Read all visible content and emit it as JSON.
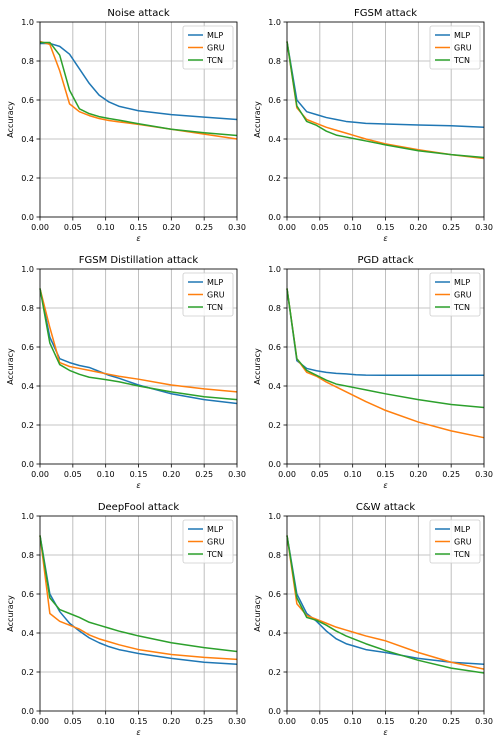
{
  "chart_data": [
    {
      "type": "line",
      "title": "Noise attack",
      "xlabel": "ε",
      "ylabel": "Accuracy",
      "xlim": [
        0.0,
        0.3
      ],
      "ylim": [
        0.0,
        1.0
      ],
      "xticks": [
        "0.00",
        "0.05",
        "0.10",
        "0.15",
        "0.20",
        "0.25",
        "0.30"
      ],
      "yticks": [
        "0.0",
        "0.2",
        "0.4",
        "0.6",
        "0.8",
        "1.0"
      ],
      "grid": true,
      "legend": "top-right",
      "x": [
        0.0,
        0.015,
        0.03,
        0.045,
        0.06,
        0.075,
        0.09,
        0.105,
        0.12,
        0.15,
        0.2,
        0.25,
        0.3
      ],
      "series": [
        {
          "name": "MLP",
          "color": "#1f77b4",
          "values": [
            0.89,
            0.89,
            0.875,
            0.835,
            0.76,
            0.685,
            0.625,
            0.59,
            0.568,
            0.545,
            0.525,
            0.512,
            0.5
          ]
        },
        {
          "name": "GRU",
          "color": "#ff7f0e",
          "values": [
            0.9,
            0.885,
            0.75,
            0.58,
            0.54,
            0.52,
            0.505,
            0.495,
            0.488,
            0.475,
            0.45,
            0.425,
            0.4
          ]
        },
        {
          "name": "TCN",
          "color": "#2ca02c",
          "values": [
            0.895,
            0.895,
            0.83,
            0.65,
            0.555,
            0.53,
            0.515,
            0.505,
            0.497,
            0.478,
            0.45,
            0.432,
            0.418
          ]
        }
      ]
    },
    {
      "type": "line",
      "title": "FGSM attack",
      "xlabel": "ε",
      "ylabel": "Accuracy",
      "xlim": [
        0.0,
        0.3
      ],
      "ylim": [
        0.0,
        1.0
      ],
      "xticks": [
        "0.00",
        "0.05",
        "0.10",
        "0.15",
        "0.20",
        "0.25",
        "0.30"
      ],
      "yticks": [
        "0.0",
        "0.2",
        "0.4",
        "0.6",
        "0.8",
        "1.0"
      ],
      "grid": true,
      "legend": "top-right",
      "x": [
        0.0,
        0.015,
        0.03,
        0.045,
        0.06,
        0.075,
        0.09,
        0.105,
        0.12,
        0.15,
        0.2,
        0.25,
        0.3
      ],
      "series": [
        {
          "name": "MLP",
          "color": "#1f77b4",
          "values": [
            0.9,
            0.6,
            0.54,
            0.525,
            0.51,
            0.5,
            0.49,
            0.485,
            0.48,
            0.477,
            0.472,
            0.468,
            0.46
          ]
        },
        {
          "name": "GRU",
          "color": "#ff7f0e",
          "values": [
            0.9,
            0.56,
            0.5,
            0.48,
            0.46,
            0.445,
            0.43,
            0.415,
            0.4,
            0.375,
            0.345,
            0.32,
            0.3
          ]
        },
        {
          "name": "TCN",
          "color": "#2ca02c",
          "values": [
            0.9,
            0.57,
            0.49,
            0.47,
            0.44,
            0.42,
            0.41,
            0.4,
            0.39,
            0.37,
            0.34,
            0.32,
            0.305
          ]
        }
      ]
    },
    {
      "type": "line",
      "title": "FGSM Distillation attack",
      "xlabel": "ε",
      "ylabel": "Accuracy",
      "xlim": [
        0.0,
        0.3
      ],
      "ylim": [
        0.0,
        1.0
      ],
      "xticks": [
        "0.00",
        "0.05",
        "0.10",
        "0.15",
        "0.20",
        "0.25",
        "0.30"
      ],
      "yticks": [
        "0.0",
        "0.2",
        "0.4",
        "0.6",
        "0.8",
        "1.0"
      ],
      "grid": true,
      "legend": "top-right",
      "x": [
        0.0,
        0.015,
        0.03,
        0.045,
        0.06,
        0.075,
        0.09,
        0.105,
        0.12,
        0.15,
        0.2,
        0.25,
        0.3
      ],
      "series": [
        {
          "name": "MLP",
          "color": "#1f77b4",
          "values": [
            0.9,
            0.65,
            0.54,
            0.52,
            0.505,
            0.495,
            0.475,
            0.455,
            0.44,
            0.405,
            0.36,
            0.33,
            0.31
          ]
        },
        {
          "name": "GRU",
          "color": "#ff7f0e",
          "values": [
            0.9,
            0.7,
            0.52,
            0.5,
            0.49,
            0.48,
            0.47,
            0.46,
            0.45,
            0.435,
            0.405,
            0.385,
            0.37
          ]
        },
        {
          "name": "TCN",
          "color": "#2ca02c",
          "values": [
            0.9,
            0.62,
            0.51,
            0.48,
            0.46,
            0.445,
            0.438,
            0.43,
            0.422,
            0.4,
            0.37,
            0.345,
            0.33
          ]
        }
      ]
    },
    {
      "type": "line",
      "title": "PGD attack",
      "xlabel": "ε",
      "ylabel": "Accuracy",
      "xlim": [
        0.0,
        0.3
      ],
      "ylim": [
        0.0,
        1.0
      ],
      "xticks": [
        "0.00",
        "0.05",
        "0.10",
        "0.15",
        "0.20",
        "0.25",
        "0.30"
      ],
      "yticks": [
        "0.0",
        "0.2",
        "0.4",
        "0.6",
        "0.8",
        "1.0"
      ],
      "grid": true,
      "legend": "top-right",
      "x": [
        0.0,
        0.015,
        0.03,
        0.045,
        0.06,
        0.075,
        0.09,
        0.105,
        0.12,
        0.15,
        0.2,
        0.25,
        0.3
      ],
      "series": [
        {
          "name": "MLP",
          "color": "#1f77b4",
          "values": [
            0.9,
            0.53,
            0.49,
            0.478,
            0.47,
            0.465,
            0.462,
            0.458,
            0.456,
            0.455,
            0.455,
            0.455,
            0.455
          ]
        },
        {
          "name": "GRU",
          "color": "#ff7f0e",
          "values": [
            0.9,
            0.54,
            0.47,
            0.45,
            0.42,
            0.395,
            0.37,
            0.345,
            0.32,
            0.275,
            0.215,
            0.17,
            0.135
          ]
        },
        {
          "name": "TCN",
          "color": "#2ca02c",
          "values": [
            0.9,
            0.54,
            0.48,
            0.455,
            0.43,
            0.41,
            0.4,
            0.39,
            0.38,
            0.36,
            0.33,
            0.305,
            0.29
          ]
        }
      ]
    },
    {
      "type": "line",
      "title": "DeepFool attack",
      "xlabel": "ε",
      "ylabel": "Accuracy",
      "xlim": [
        0.0,
        0.3
      ],
      "ylim": [
        0.0,
        1.0
      ],
      "xticks": [
        "0.00",
        "0.05",
        "0.10",
        "0.15",
        "0.20",
        "0.25",
        "0.30"
      ],
      "yticks": [
        "0.0",
        "0.2",
        "0.4",
        "0.6",
        "0.8",
        "1.0"
      ],
      "grid": true,
      "legend": "top-right",
      "x": [
        0.0,
        0.015,
        0.03,
        0.045,
        0.06,
        0.075,
        0.09,
        0.105,
        0.12,
        0.15,
        0.2,
        0.25,
        0.3
      ],
      "series": [
        {
          "name": "MLP",
          "color": "#1f77b4",
          "values": [
            0.9,
            0.6,
            0.51,
            0.45,
            0.41,
            0.375,
            0.35,
            0.33,
            0.315,
            0.295,
            0.27,
            0.25,
            0.24
          ]
        },
        {
          "name": "GRU",
          "color": "#ff7f0e",
          "values": [
            0.9,
            0.5,
            0.46,
            0.44,
            0.42,
            0.39,
            0.37,
            0.355,
            0.34,
            0.315,
            0.29,
            0.275,
            0.265
          ]
        },
        {
          "name": "TCN",
          "color": "#2ca02c",
          "values": [
            0.9,
            0.58,
            0.52,
            0.5,
            0.48,
            0.455,
            0.44,
            0.425,
            0.41,
            0.385,
            0.35,
            0.325,
            0.305
          ]
        }
      ]
    },
    {
      "type": "line",
      "title": "C&W attack",
      "xlabel": "ε",
      "ylabel": "Accuracy",
      "xlim": [
        0.0,
        0.3
      ],
      "ylim": [
        0.0,
        1.0
      ],
      "xticks": [
        "0.00",
        "0.05",
        "0.10",
        "0.15",
        "0.20",
        "0.25",
        "0.30"
      ],
      "yticks": [
        "0.0",
        "0.2",
        "0.4",
        "0.6",
        "0.8",
        "1.0"
      ],
      "grid": true,
      "legend": "top-right",
      "x": [
        0.0,
        0.015,
        0.03,
        0.045,
        0.06,
        0.075,
        0.09,
        0.105,
        0.12,
        0.15,
        0.2,
        0.25,
        0.3
      ],
      "series": [
        {
          "name": "MLP",
          "color": "#1f77b4",
          "values": [
            0.9,
            0.6,
            0.5,
            0.46,
            0.41,
            0.37,
            0.345,
            0.33,
            0.315,
            0.3,
            0.27,
            0.25,
            0.24
          ]
        },
        {
          "name": "GRU",
          "color": "#ff7f0e",
          "values": [
            0.9,
            0.55,
            0.49,
            0.47,
            0.45,
            0.43,
            0.415,
            0.4,
            0.385,
            0.36,
            0.3,
            0.25,
            0.215
          ]
        },
        {
          "name": "TCN",
          "color": "#2ca02c",
          "values": [
            0.9,
            0.58,
            0.48,
            0.465,
            0.44,
            0.41,
            0.385,
            0.365,
            0.345,
            0.31,
            0.26,
            0.22,
            0.195
          ]
        }
      ]
    }
  ]
}
